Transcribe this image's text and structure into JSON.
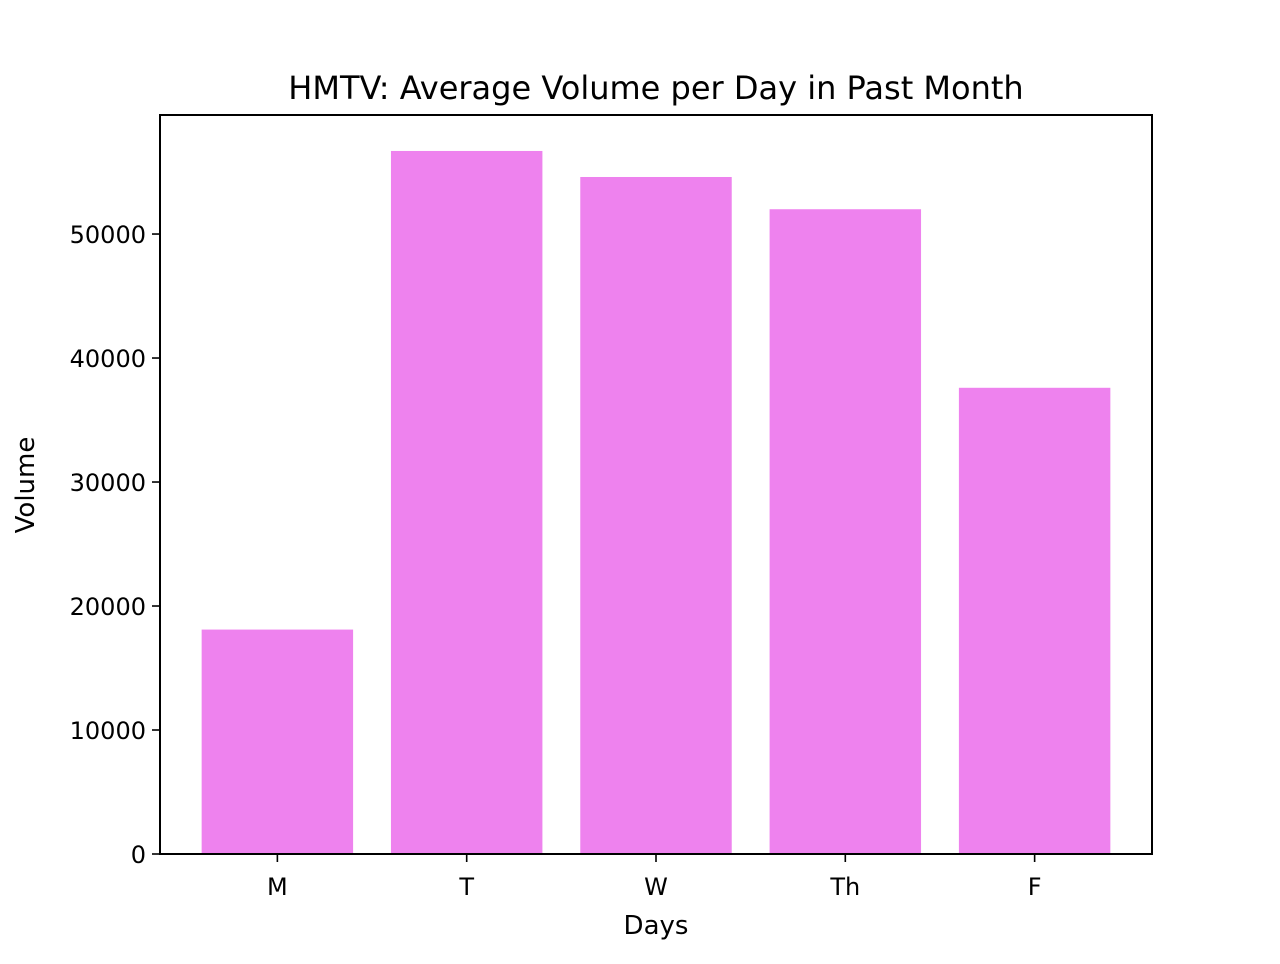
{
  "chart_data": {
    "type": "bar",
    "title": "HMTV: Average Volume per Day in Past Month",
    "xlabel": "Days",
    "ylabel": "Volume",
    "categories": [
      "M",
      "T",
      "W",
      "Th",
      "F"
    ],
    "values": [
      18100,
      56700,
      54600,
      52000,
      37600
    ],
    "ylim": [
      0,
      59600
    ],
    "yticks": [
      0,
      10000,
      20000,
      30000,
      40000,
      50000
    ],
    "ytick_labels": [
      "0",
      "10000",
      "20000",
      "30000",
      "40000",
      "50000"
    ],
    "bar_color": "#ee82ee",
    "grid": false,
    "legend": "none"
  }
}
